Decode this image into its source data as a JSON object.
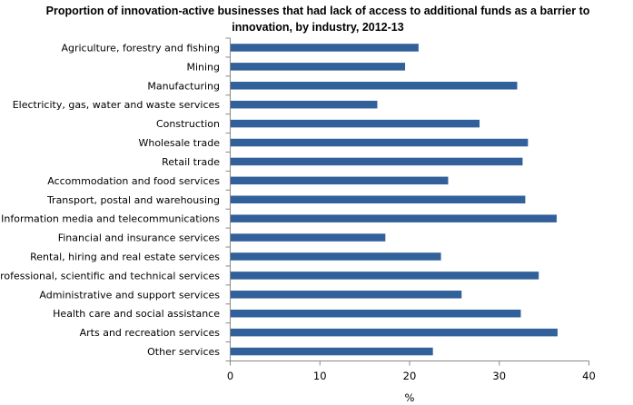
{
  "chart_data": {
    "type": "bar",
    "orientation": "horizontal",
    "title": "Proportion of innovation-active businesses that had lack of access to additional funds as a barrier to innovation, by industry, 2012-13",
    "xlabel": "%",
    "ylabel": "",
    "xlim": [
      0,
      40
    ],
    "xticks": [
      "0",
      "10",
      "20",
      "30",
      "40"
    ],
    "grid": false,
    "bar_color": "#31609A",
    "categories": [
      "Agriculture, forestry and fishing",
      "Mining",
      "Manufacturing",
      "Electricity, gas, water and waste services",
      "Construction",
      "Wholesale trade",
      "Retail trade",
      "Accommodation and food services",
      "Transport, postal and warehousing",
      "Information media and telecommunications",
      "Financial and insurance services",
      "Rental, hiring and real estate services",
      "Professional, scientific and technical services",
      "Administrative and support services",
      "Health care and social assistance",
      "Arts and recreation services",
      "Other services"
    ],
    "values": [
      21.0,
      19.5,
      32.0,
      16.4,
      27.8,
      33.2,
      32.6,
      24.3,
      32.9,
      36.4,
      17.3,
      23.5,
      34.4,
      25.8,
      32.4,
      36.5,
      22.6
    ]
  }
}
